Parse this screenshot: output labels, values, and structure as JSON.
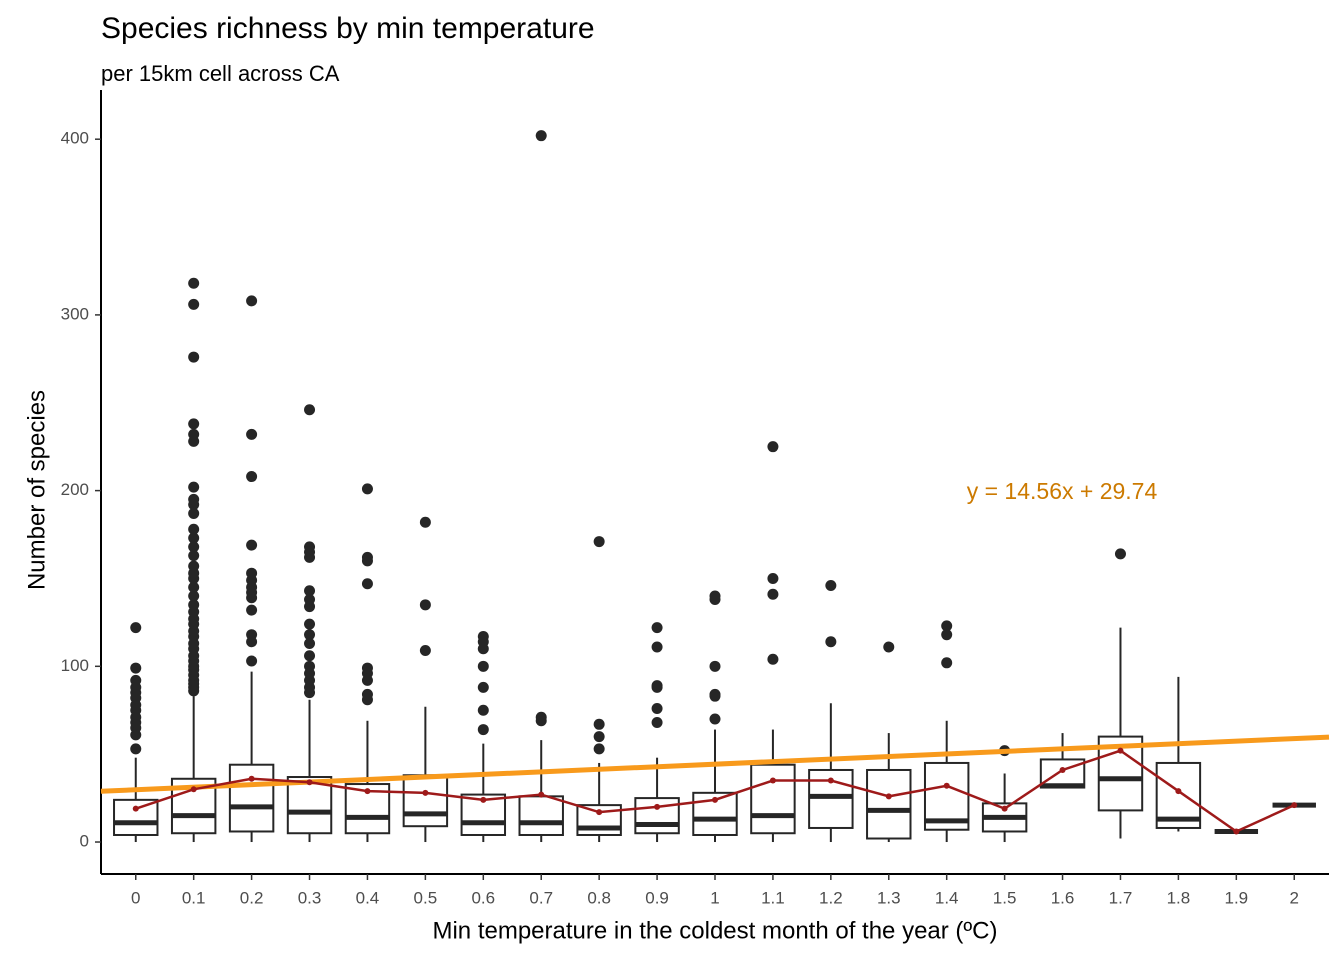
{
  "chart_data": {
    "type": "boxplot",
    "title": "Species richness by min temperature",
    "subtitle": "per 15km cell across CA",
    "x_label": "Min temperature in the coldest month of the year (ºC)",
    "y_label": "Number of species",
    "x": [
      0,
      0.1,
      0.2,
      0.3,
      0.4,
      0.5,
      0.6,
      0.7,
      0.8,
      0.9,
      1,
      1.1,
      1.2,
      1.3,
      1.4,
      1.5,
      1.6,
      1.7,
      1.8,
      1.9,
      2
    ],
    "xlim": [
      -0.06,
      2.06
    ],
    "ylim": [
      -18.2,
      428
    ],
    "yticks": [
      0,
      100,
      200,
      300,
      400
    ],
    "box_color": "#262626",
    "boxes": {
      "whisker_low": [
        0,
        0,
        0,
        0,
        0,
        0,
        0,
        0,
        0,
        0,
        0,
        0,
        0,
        0,
        0,
        0,
        31,
        2,
        6,
        6,
        21
      ],
      "q1": [
        4,
        5,
        6,
        5,
        5,
        9,
        4,
        4,
        4,
        5,
        4,
        5,
        8,
        2,
        7,
        6,
        31,
        18,
        8,
        6,
        21
      ],
      "median": [
        11,
        15,
        20,
        17,
        14,
        16,
        11,
        11,
        8,
        10,
        13,
        15,
        26,
        18,
        12,
        14,
        32,
        36,
        13,
        6,
        21
      ],
      "q3": [
        24,
        36,
        44,
        37,
        33,
        38,
        27,
        26,
        21,
        25,
        28,
        44,
        41,
        41,
        45,
        22,
        47,
        60,
        45,
        6,
        21
      ],
      "whisker_high": [
        48,
        83,
        97,
        81,
        69,
        77,
        56,
        58,
        45,
        48,
        64,
        64,
        79,
        62,
        69,
        39,
        62,
        122,
        94,
        6,
        21
      ],
      "outliers": [
        [
          53,
          61,
          65,
          68,
          71,
          75,
          78,
          82,
          85,
          88,
          92,
          99,
          122
        ],
        [
          86,
          88,
          90,
          92,
          95,
          98,
          100,
          103,
          106,
          110,
          113,
          117,
          120,
          124,
          127,
          131,
          135,
          140,
          145,
          150,
          153,
          157,
          163,
          168,
          173,
          178,
          187,
          192,
          195,
          202,
          228,
          232,
          238,
          276,
          306,
          318
        ],
        [
          103,
          114,
          118,
          132,
          139,
          142,
          145,
          149,
          153,
          169,
          208,
          232,
          308
        ],
        [
          85,
          88,
          92,
          96,
          100,
          106,
          113,
          118,
          124,
          134,
          138,
          143,
          162,
          165,
          168,
          246
        ],
        [
          81,
          84,
          92,
          96,
          99,
          147,
          160,
          162,
          201
        ],
        [
          109,
          135,
          182
        ],
        [
          64,
          75,
          88,
          100,
          110,
          114,
          117
        ],
        [
          69,
          71,
          402
        ],
        [
          53,
          60,
          67,
          171
        ],
        [
          68,
          76,
          88,
          89,
          111,
          122
        ],
        [
          70,
          83,
          84,
          100,
          138,
          140
        ],
        [
          104,
          141,
          150,
          225
        ],
        [
          114,
          146
        ],
        [
          111
        ],
        [
          102,
          118,
          123
        ],
        [
          52
        ],
        [],
        [
          164
        ],
        [],
        [],
        []
      ]
    },
    "means": {
      "color": "#9e1a1a",
      "values": [
        19,
        30,
        36,
        34,
        29,
        28,
        24,
        27,
        17,
        20,
        24,
        35,
        35,
        26,
        32,
        19,
        41,
        52,
        29,
        6,
        21
      ]
    },
    "regression": {
      "slope": 14.56,
      "intercept": 29.74,
      "label": "y = 14.56x + 29.74",
      "color": "#f89a1c",
      "label_color": "#cc7a00"
    }
  }
}
